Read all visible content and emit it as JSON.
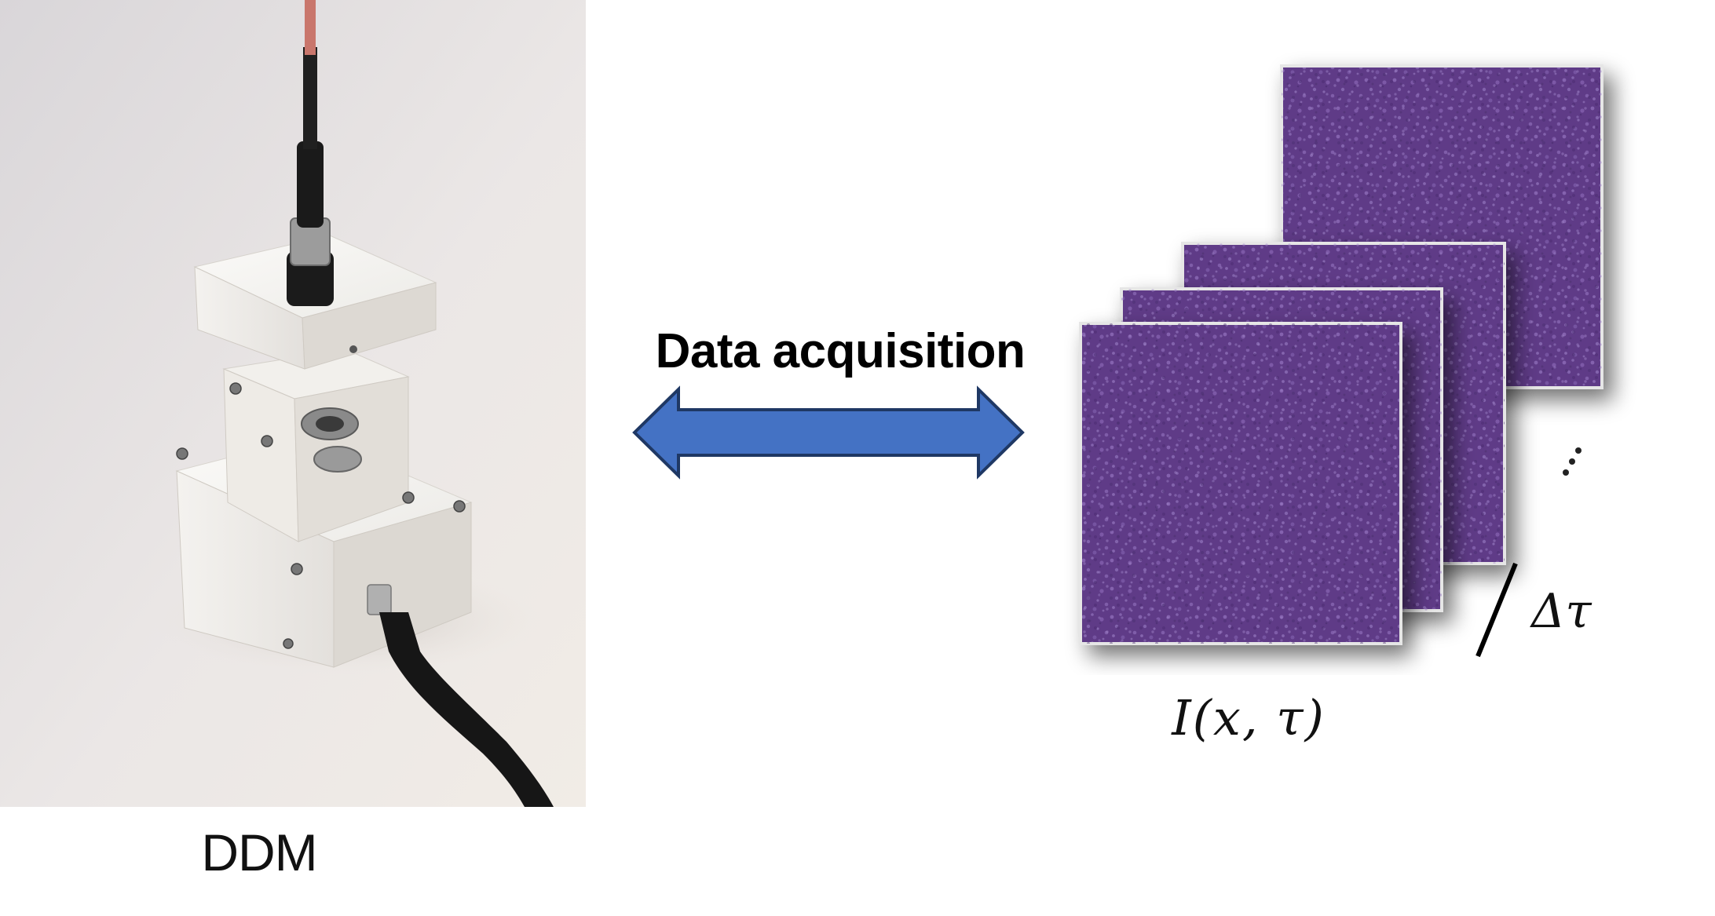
{
  "photo": {
    "subject": "DDM-device-photo"
  },
  "labels": {
    "device": "DDM",
    "acquisition": "Data acquisition",
    "intensity": "I(x, τ)",
    "delta_tau": "Δτ"
  },
  "colors": {
    "arrow_fill": "#4472C4",
    "arrow_stroke": "#1F3864",
    "frame_purple": "#5E3B87",
    "frame_speckle": "#8D6BB8"
  },
  "frames": {
    "count_shown": 4
  }
}
